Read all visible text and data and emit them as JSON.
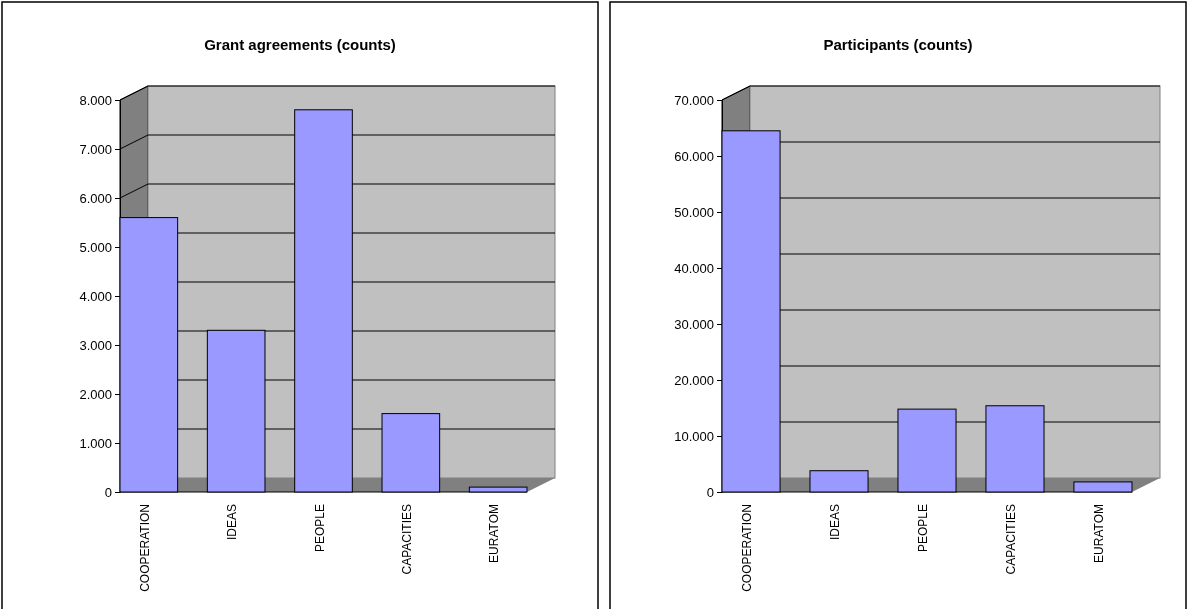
{
  "chart_data": [
    {
      "type": "bar",
      "title": "Grant agreements (counts)",
      "categories": [
        "COOPERATION",
        "IDEAS",
        "PEOPLE",
        "CAPACITIES",
        "EURATOM"
      ],
      "values": [
        5600,
        3300,
        7800,
        1600,
        100
      ],
      "color": "#9999ff",
      "ylim": [
        0,
        8000
      ],
      "yticks": [
        0,
        {
          "value": 1000,
          "label": "1.000"
        },
        {
          "value": 2000,
          "label": "2.000"
        },
        {
          "value": 3000,
          "label": "3.000"
        },
        {
          "value": 4000,
          "label": "4.000"
        },
        {
          "value": 5000,
          "label": "5.000"
        },
        {
          "value": 6000,
          "label": "6.000"
        },
        {
          "value": 7000,
          "label": "7.000"
        },
        {
          "value": 8000,
          "label": "8.000"
        }
      ],
      "grid": "y"
    },
    {
      "type": "bar",
      "title": "Participants (counts)",
      "categories": [
        "COOPERATION",
        "IDEAS",
        "PEOPLE",
        "CAPACITIES",
        "EURATOM"
      ],
      "values": [
        64500,
        3800,
        14800,
        15400,
        1800
      ],
      "color": "#9999ff",
      "ylim": [
        0,
        70000
      ],
      "yticks": [
        0,
        {
          "value": 10000,
          "label": "10.000"
        },
        {
          "value": 20000,
          "label": "20.000"
        },
        {
          "value": 30000,
          "label": "30.000"
        },
        {
          "value": 40000,
          "label": "40.000"
        },
        {
          "value": 50000,
          "label": "50.000"
        },
        {
          "value": 60000,
          "label": "60.000"
        },
        {
          "value": 70000,
          "label": "70.000"
        }
      ],
      "grid": "y"
    }
  ]
}
